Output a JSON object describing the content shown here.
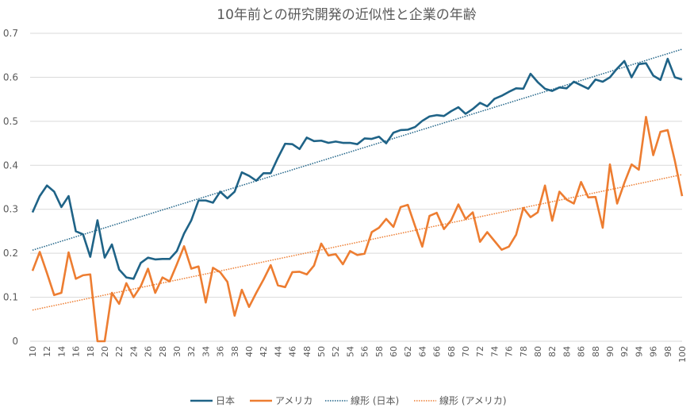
{
  "chart_data": {
    "type": "line",
    "title": "10年前との研究開発の近似性と企業の年齢",
    "xlabel": "",
    "ylabel": "",
    "x": [
      10,
      11,
      12,
      13,
      14,
      15,
      16,
      17,
      18,
      19,
      20,
      21,
      22,
      23,
      24,
      25,
      26,
      27,
      28,
      29,
      30,
      31,
      32,
      33,
      34,
      35,
      36,
      37,
      38,
      39,
      40,
      41,
      42,
      43,
      44,
      45,
      46,
      47,
      48,
      49,
      50,
      51,
      52,
      53,
      54,
      55,
      56,
      57,
      58,
      59,
      60,
      61,
      62,
      63,
      64,
      65,
      66,
      67,
      68,
      69,
      70,
      71,
      72,
      73,
      74,
      75,
      76,
      77,
      78,
      79,
      80,
      81,
      82,
      83,
      84,
      85,
      86,
      87,
      88,
      89,
      90,
      91,
      92,
      93,
      94,
      95,
      96,
      97,
      98,
      99,
      100
    ],
    "x_tick_labels": [
      "10",
      "12",
      "14",
      "16",
      "18",
      "20",
      "22",
      "24",
      "26",
      "28",
      "30",
      "32",
      "34",
      "36",
      "38",
      "40",
      "42",
      "44",
      "46",
      "48",
      "50",
      "52",
      "54",
      "56",
      "58",
      "60",
      "62",
      "64",
      "66",
      "68",
      "70",
      "72",
      "74",
      "76",
      "78",
      "80",
      "82",
      "84",
      "86",
      "88",
      "90",
      "92",
      "94",
      "96",
      "98",
      "100"
    ],
    "ylim": [
      0,
      0.7
    ],
    "y_ticks": [
      "0",
      "0.1",
      "0.2",
      "0.3",
      "0.4",
      "0.5",
      "0.6",
      "0.7"
    ],
    "grid": true,
    "legend_position": "bottom",
    "series": [
      {
        "name": "日本",
        "color": "#1f6387",
        "values": [
          0.293,
          0.33,
          0.354,
          0.34,
          0.305,
          0.33,
          0.25,
          0.243,
          0.192,
          0.275,
          0.19,
          0.22,
          0.163,
          0.145,
          0.142,
          0.178,
          0.19,
          0.186,
          0.187,
          0.187,
          0.205,
          0.245,
          0.275,
          0.32,
          0.32,
          0.315,
          0.34,
          0.325,
          0.34,
          0.384,
          0.376,
          0.365,
          0.382,
          0.382,
          0.417,
          0.449,
          0.448,
          0.437,
          0.463,
          0.455,
          0.456,
          0.451,
          0.454,
          0.451,
          0.451,
          0.448,
          0.461,
          0.46,
          0.465,
          0.45,
          0.474,
          0.48,
          0.481,
          0.487,
          0.501,
          0.511,
          0.514,
          0.512,
          0.523,
          0.532,
          0.517,
          0.528,
          0.542,
          0.534,
          0.551,
          0.558,
          0.567,
          0.575,
          0.574,
          0.608,
          0.589,
          0.574,
          0.569,
          0.577,
          0.575,
          0.59,
          0.582,
          0.574,
          0.595,
          0.59,
          0.6,
          0.62,
          0.637,
          0.6,
          0.63,
          0.632,
          0.604,
          0.594,
          0.642,
          0.6,
          0.595
        ]
      },
      {
        "name": "アメリカ",
        "color": "#ed7d31",
        "values": [
          0.16,
          0.203,
          0.155,
          0.105,
          0.11,
          0.202,
          0.142,
          0.15,
          0.152,
          0.0,
          0.0,
          0.11,
          0.085,
          0.132,
          0.1,
          0.125,
          0.165,
          0.11,
          0.145,
          0.136,
          0.175,
          0.216,
          0.165,
          0.17,
          0.088,
          0.167,
          0.157,
          0.135,
          0.058,
          0.117,
          0.078,
          0.11,
          0.14,
          0.173,
          0.127,
          0.123,
          0.157,
          0.158,
          0.152,
          0.172,
          0.222,
          0.195,
          0.198,
          0.175,
          0.205,
          0.196,
          0.199,
          0.248,
          0.258,
          0.278,
          0.26,
          0.305,
          0.31,
          0.262,
          0.215,
          0.285,
          0.292,
          0.255,
          0.275,
          0.311,
          0.278,
          0.293,
          0.226,
          0.248,
          0.228,
          0.208,
          0.215,
          0.242,
          0.303,
          0.282,
          0.293,
          0.354,
          0.274,
          0.34,
          0.322,
          0.313,
          0.362,
          0.327,
          0.328,
          0.258,
          0.402,
          0.313,
          0.36,
          0.402,
          0.39,
          0.51,
          0.423,
          0.476,
          0.48,
          0.41,
          0.33
        ]
      }
    ],
    "trendlines": [
      {
        "name": "線形 (日本)",
        "series": 0,
        "color": "#1f6387",
        "style": "dotted",
        "fit": "linear"
      },
      {
        "name": "線形 (アメリカ)",
        "series": 1,
        "color": "#ed7d31",
        "style": "dotted",
        "fit": "linear"
      }
    ]
  }
}
